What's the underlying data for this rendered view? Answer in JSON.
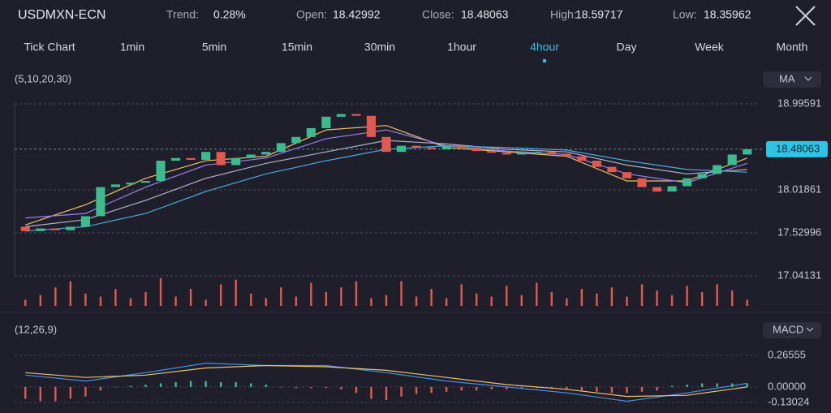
{
  "header": {
    "symbol": "USDMXN-ECN",
    "fields": [
      {
        "label": "Trend:",
        "value": "0.28%"
      },
      {
        "label": "Open:",
        "value": "18.42992"
      },
      {
        "label": "Close:",
        "value": "18.48063"
      },
      {
        "label": "High:",
        "value": "18.59717"
      },
      {
        "label": "Low:",
        "value": "18.35962"
      }
    ]
  },
  "timeframes": [
    "Tick Chart",
    "1min",
    "5min",
    "15min",
    "30min",
    "1hour",
    "4hour",
    "Day",
    "Week",
    "Month"
  ],
  "selected": 6,
  "price_panel": {
    "params": "(5,10,20,30)",
    "indicator": "MA",
    "ylim": [
      17.04131,
      18.99591
    ],
    "yticks": [
      18.99591,
      18.01861,
      17.52996,
      17.04131
    ],
    "last_price": 18.48063,
    "up_color": "#3dbb8e",
    "down_color": "#e2594f",
    "open": [
      17.6,
      17.55,
      17.58,
      17.56,
      17.6,
      17.72,
      18.05,
      18.08,
      18.1,
      18.12,
      18.35,
      18.38,
      18.36,
      18.45,
      18.3,
      18.38,
      18.42,
      18.45,
      18.55,
      18.62,
      18.72,
      18.85,
      18.88,
      18.86,
      18.62,
      18.45,
      18.52,
      18.5,
      18.48,
      18.52,
      18.5,
      18.46,
      18.44,
      18.42,
      18.44,
      18.45,
      18.43,
      18.4,
      18.35,
      18.28,
      18.22,
      18.15,
      18.05,
      18.0,
      18.06,
      18.15,
      18.2,
      18.3,
      18.42
    ],
    "close": [
      17.55,
      17.58,
      17.56,
      17.6,
      17.72,
      18.05,
      18.08,
      18.1,
      18.12,
      18.35,
      18.38,
      18.36,
      18.45,
      18.3,
      18.38,
      18.42,
      18.45,
      18.55,
      18.62,
      18.72,
      18.85,
      18.88,
      18.86,
      18.62,
      18.45,
      18.52,
      18.5,
      18.48,
      18.52,
      18.5,
      18.46,
      18.44,
      18.42,
      18.44,
      18.45,
      18.43,
      18.4,
      18.35,
      18.28,
      18.22,
      18.15,
      18.05,
      18.0,
      18.06,
      18.15,
      18.2,
      18.3,
      18.42,
      18.48
    ],
    "ma": [
      {
        "color": "#e9c46a",
        "values": [
          17.62,
          17.85,
          18.15,
          18.35,
          18.4,
          18.7,
          18.75,
          18.5,
          18.45,
          18.4,
          18.12,
          18.12,
          18.38
        ]
      },
      {
        "color": "#9b7fe8",
        "values": [
          17.7,
          17.75,
          18.05,
          18.3,
          18.38,
          18.6,
          18.7,
          18.52,
          18.46,
          18.42,
          18.2,
          18.1,
          18.32
        ]
      },
      {
        "color": "#b0b0c8",
        "values": [
          17.6,
          17.68,
          17.9,
          18.15,
          18.32,
          18.45,
          18.58,
          18.54,
          18.48,
          18.45,
          18.3,
          18.2,
          18.25
        ]
      },
      {
        "color": "#4aa8d8",
        "values": [
          17.55,
          17.6,
          17.75,
          18.0,
          18.2,
          18.35,
          18.48,
          18.52,
          18.5,
          18.47,
          18.35,
          18.25,
          18.22
        ]
      }
    ],
    "volume_color": "#e2594f",
    "volume": [
      20,
      35,
      60,
      80,
      40,
      30,
      55,
      25,
      45,
      90,
      30,
      55,
      20,
      70,
      85,
      40,
      25,
      60,
      30,
      75,
      45,
      60,
      80,
      25,
      35,
      80,
      30,
      55,
      25,
      70,
      40,
      30,
      65,
      35,
      75,
      45,
      25,
      55,
      40,
      60,
      30,
      70,
      50,
      35,
      65,
      45,
      70,
      50,
      20
    ]
  },
  "macd_panel": {
    "params": "(12,26,9)",
    "indicator": "MACD",
    "ylim": [
      -0.13024,
      0.26555
    ],
    "yticks": [
      0.26555,
      {
        "value": 0,
        "label": "0.00000"
      },
      -0.13024
    ],
    "pos_color": "#3dbb8e",
    "neg_color": "#e2594f",
    "histogram": [
      -0.1,
      -0.12,
      -0.12,
      -0.1,
      -0.08,
      -0.03,
      0.0,
      0.01,
      0.02,
      0.03,
      0.04,
      0.05,
      0.05,
      0.04,
      0.04,
      0.03,
      0.02,
      0.0,
      -0.01,
      -0.01,
      -0.01,
      -0.02,
      -0.05,
      -0.1,
      -0.11,
      -0.08,
      -0.06,
      -0.05,
      -0.04,
      -0.03,
      -0.03,
      -0.02,
      -0.02,
      -0.01,
      -0.01,
      -0.01,
      -0.02,
      -0.03,
      -0.04,
      -0.05,
      -0.05,
      -0.04,
      -0.03,
      0.01,
      0.02,
      0.03,
      0.03,
      0.03,
      0.03
    ],
    "lines": [
      {
        "color": "#4a8fe0",
        "values": [
          0.1,
          0.05,
          0.12,
          0.2,
          0.18,
          0.18,
          0.12,
          0.05,
          0.0,
          -0.05,
          -0.12,
          -0.05,
          0.03
        ]
      },
      {
        "color": "#e9c46a",
        "values": [
          0.12,
          0.08,
          0.1,
          0.16,
          0.18,
          0.17,
          0.14,
          0.08,
          0.02,
          -0.02,
          -0.08,
          -0.07,
          0.0
        ]
      }
    ]
  }
}
